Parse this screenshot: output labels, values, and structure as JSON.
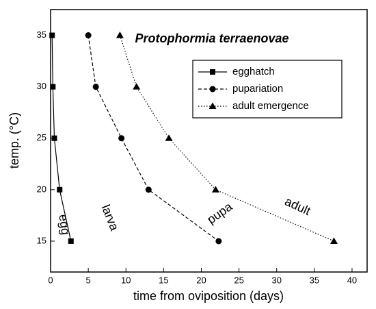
{
  "chart_data": {
    "type": "line",
    "title": "Protophormia terraenovae",
    "x_label": "time from oviposition (days)",
    "y_label": "temp. (°C)",
    "xlim": [
      0,
      42
    ],
    "ylim": [
      12,
      37.5
    ],
    "xticks": [
      0,
      5,
      10,
      15,
      20,
      25,
      30,
      35,
      40
    ],
    "yticks": [
      15,
      20,
      25,
      30,
      35
    ],
    "legend": "upper right",
    "series": [
      {
        "name": "egghatch",
        "color": "#000000",
        "dash": "solid",
        "marker": "square",
        "x": [
          0.2,
          0.3,
          0.5,
          1.2,
          2.7
        ],
        "values": [
          35,
          30,
          25,
          20,
          15
        ]
      },
      {
        "name": "pupariation",
        "color": "#000000",
        "dash": "dashed",
        "marker": "circle",
        "x": [
          5.0,
          6.0,
          9.4,
          13.0,
          22.3
        ],
        "values": [
          35,
          30,
          25,
          20,
          15
        ]
      },
      {
        "name": "adult emergence",
        "color": "#000000",
        "dash": "dotted",
        "marker": "triangle",
        "x": [
          9.2,
          11.4,
          15.7,
          21.9,
          37.6
        ],
        "values": [
          35,
          30,
          25,
          20,
          15
        ]
      }
    ],
    "annotations": [
      "egg",
      "larva",
      "pupa",
      "adult"
    ]
  }
}
